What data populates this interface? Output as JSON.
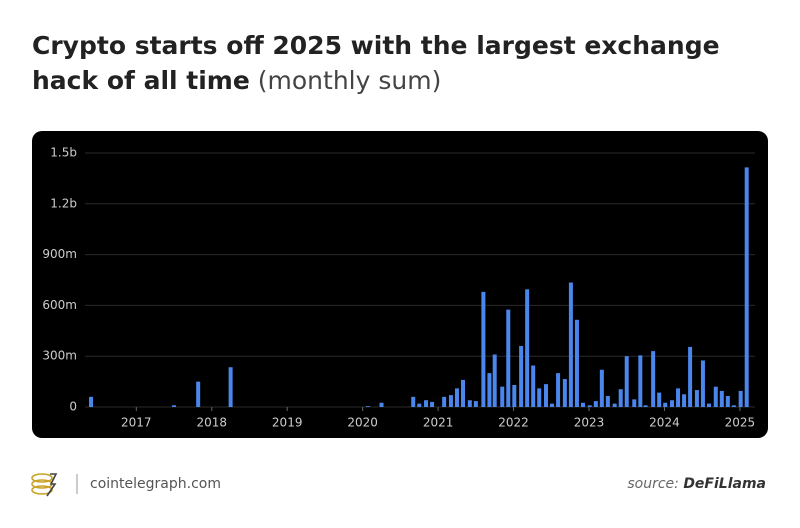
{
  "chart_data": {
    "type": "bar",
    "title": "Crypto starts off 2025 with the largest exchange hack of all time",
    "subtitle": "(monthly sum)",
    "color": "#4a86ec",
    "grid": true,
    "x": [
      2016.4,
      2017.5,
      2017.82,
      2018.25,
      2020.07,
      2020.25,
      2020.67,
      2020.75,
      2020.84,
      2020.92,
      2021.08,
      2021.17,
      2021.25,
      2021.33,
      2021.42,
      2021.5,
      2021.6,
      2021.68,
      2021.75,
      2021.85,
      2021.93,
      2022.01,
      2022.1,
      2022.18,
      2022.26,
      2022.34,
      2022.43,
      2022.51,
      2022.59,
      2022.68,
      2022.76,
      2022.84,
      2022.92,
      2023.01,
      2023.09,
      2023.17,
      2023.25,
      2023.34,
      2023.42,
      2023.5,
      2023.6,
      2023.68,
      2023.75,
      2023.85,
      2023.93,
      2024.01,
      2024.1,
      2024.18,
      2024.26,
      2024.34,
      2024.43,
      2024.51,
      2024.59,
      2024.68,
      2024.76,
      2024.84,
      2024.92,
      2025.01,
      2025.09
    ],
    "values": [
      60,
      10,
      150,
      235,
      5,
      25,
      60,
      20,
      40,
      30,
      60,
      70,
      110,
      160,
      40,
      35,
      680,
      200,
      310,
      120,
      575,
      130,
      360,
      695,
      245,
      110,
      135,
      20,
      200,
      165,
      735,
      515,
      25,
      10,
      35,
      220,
      65,
      20,
      105,
      300,
      45,
      305,
      10,
      330,
      85,
      25,
      40,
      110,
      75,
      355,
      100,
      275,
      20,
      120,
      95,
      65,
      10,
      95,
      1415
    ],
    "xlim": [
      2016.32,
      2025.2
    ],
    "xticks": [
      2017,
      2018,
      2019,
      2020,
      2021,
      2022,
      2023,
      2024,
      2025
    ],
    "ylim": [
      0,
      1500
    ],
    "yticks": [
      0,
      {
        "value": 300,
        "label": "300m"
      },
      {
        "value": 600,
        "label": "600m"
      },
      {
        "value": 900,
        "label": "900m"
      },
      {
        "value": 1200,
        "label": "1.2b"
      },
      {
        "value": 1500,
        "label": "1.5b"
      }
    ]
  },
  "footer": {
    "site": "cointelegraph.com",
    "source_label": "source:",
    "source": "DeFiLlama"
  }
}
